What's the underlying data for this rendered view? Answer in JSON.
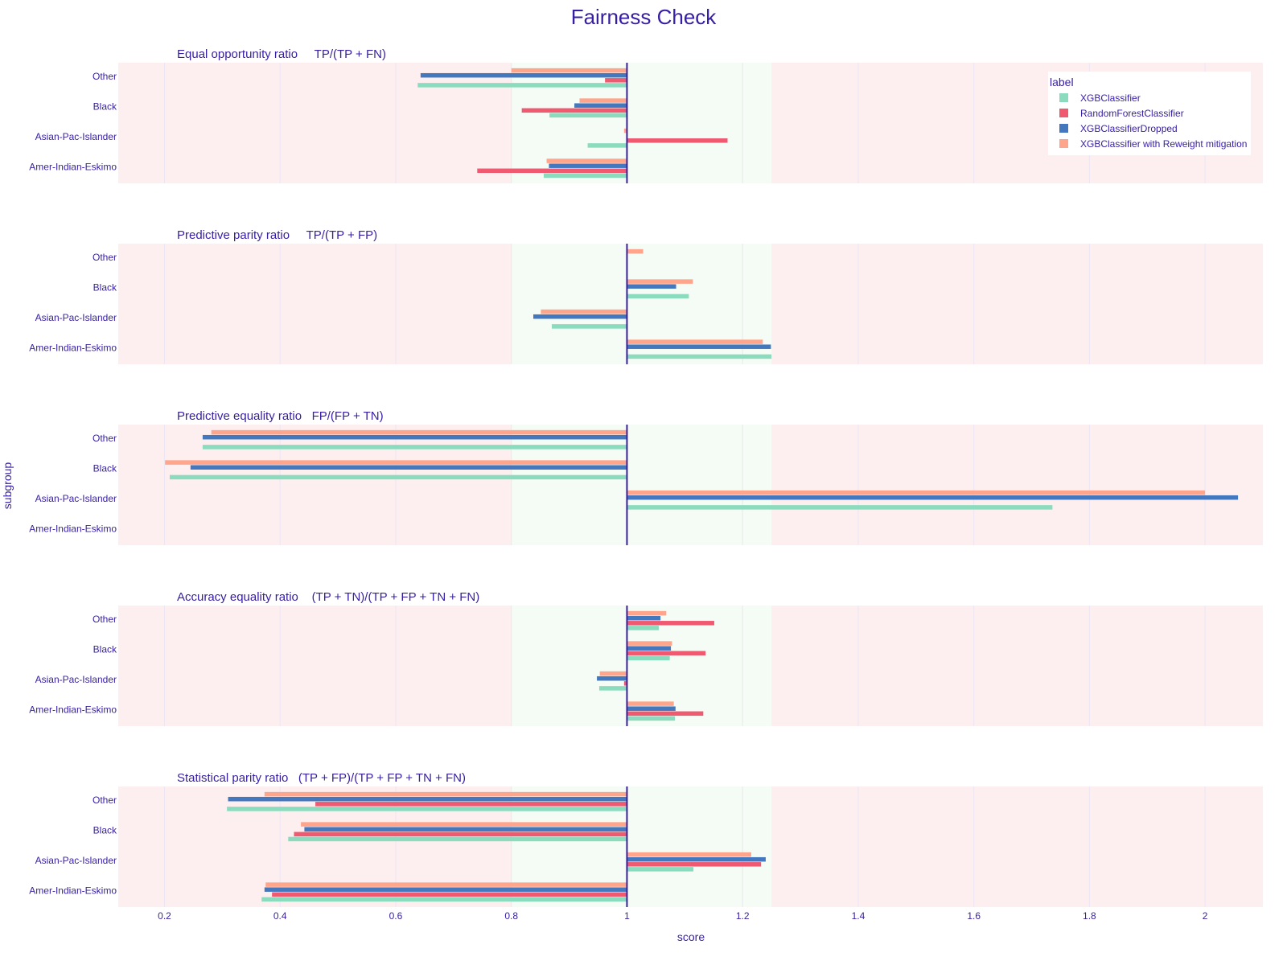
{
  "chart_data": {
    "type": "bar",
    "orientation": "horizontal",
    "title": "Fairness Check",
    "xlabel": "score",
    "ylabel": "subgroup",
    "xlim": [
      0.12,
      2.1
    ],
    "xticks": [
      0.2,
      0.4,
      0.6,
      0.8,
      1,
      1.2,
      1.4,
      1.6,
      1.8,
      2
    ],
    "baseline": 1,
    "acceptable_range": [
      0.8,
      1.25
    ],
    "colors": {
      "fair_zone": "#f5fbf5",
      "unfair_zone": "#fdeef0",
      "baseline": "#371ea3",
      "text": "#371ea3",
      "grid": "#ece6f4"
    },
    "grid": true,
    "legend": {
      "title": "label",
      "placement": "top-right",
      "items": [
        {
          "name": "XGBClassifier",
          "color": "#8bdcbe"
        },
        {
          "name": "RandomForestClassifier",
          "color": "#f05a71"
        },
        {
          "name": "XGBClassifierDropped",
          "color": "#4378bf"
        },
        {
          "name": "XGBClassifier with Reweight mitigation",
          "color": "#ffa58c"
        }
      ]
    },
    "categories": [
      "Other",
      "Black",
      "Asian-Pac-Islander",
      "Amer-Indian-Eskimo"
    ],
    "panels": [
      {
        "title": "Equal opportunity ratio     TP/(TP + FN)",
        "series": [
          {
            "name": "XGBClassifier",
            "values": [
              0.638,
              0.866,
              0.932,
              0.856
            ]
          },
          {
            "name": "RandomForestClassifier",
            "values": [
              0.962,
              0.818,
              1.174,
              0.741
            ]
          },
          {
            "name": "XGBClassifierDropped",
            "values": [
              0.643,
              0.909,
              null,
              0.865
            ]
          },
          {
            "name": "XGBClassifier with Reweight mitigation",
            "values": [
              0.8,
              0.918,
              0.995,
              0.861
            ]
          }
        ]
      },
      {
        "title": "Predictive parity ratio     TP/(TP + FP)",
        "series": [
          {
            "name": "XGBClassifier",
            "values": [
              null,
              1.107,
              0.87,
              1.25
            ]
          },
          {
            "name": "RandomForestClassifier",
            "values": [
              null,
              null,
              null,
              null
            ]
          },
          {
            "name": "XGBClassifierDropped",
            "values": [
              null,
              1.085,
              0.838,
              1.249
            ]
          },
          {
            "name": "XGBClassifier with Reweight mitigation",
            "values": [
              1.028,
              1.114,
              0.851,
              1.235
            ]
          }
        ]
      },
      {
        "title": "Predictive equality ratio   FP/(FP + TN)",
        "series": [
          {
            "name": "XGBClassifier",
            "values": [
              0.266,
              0.209,
              1.736,
              null
            ]
          },
          {
            "name": "RandomForestClassifier",
            "values": [
              null,
              null,
              null,
              null
            ]
          },
          {
            "name": "XGBClassifierDropped",
            "values": [
              0.266,
              0.245,
              2.057,
              null
            ]
          },
          {
            "name": "XGBClassifier with Reweight mitigation",
            "values": [
              0.281,
              0.201,
              2.0,
              null
            ]
          }
        ]
      },
      {
        "title": "Accuracy equality ratio    (TP + TN)/(TP + FP + TN + FN)",
        "series": [
          {
            "name": "XGBClassifier",
            "values": [
              1.055,
              1.074,
              0.952,
              1.083
            ]
          },
          {
            "name": "RandomForestClassifier",
            "values": [
              1.151,
              1.136,
              0.995,
              1.132
            ]
          },
          {
            "name": "XGBClassifierDropped",
            "values": [
              1.058,
              1.076,
              0.948,
              1.084
            ]
          },
          {
            "name": "XGBClassifier with Reweight mitigation",
            "values": [
              1.068,
              1.078,
              0.953,
              1.081
            ]
          }
        ]
      },
      {
        "title": "Statistical parity ratio   (TP + FP)/(TP + FP + TN + FN)",
        "series": [
          {
            "name": "XGBClassifier",
            "values": [
              0.308,
              0.414,
              1.115,
              0.368
            ]
          },
          {
            "name": "RandomForestClassifier",
            "values": [
              0.461,
              0.424,
              1.232,
              0.386
            ]
          },
          {
            "name": "XGBClassifierDropped",
            "values": [
              0.31,
              0.442,
              1.24,
              0.373
            ]
          },
          {
            "name": "XGBClassifier with Reweight mitigation",
            "values": [
              0.373,
              0.436,
              1.215,
              0.375
            ]
          }
        ]
      }
    ]
  }
}
